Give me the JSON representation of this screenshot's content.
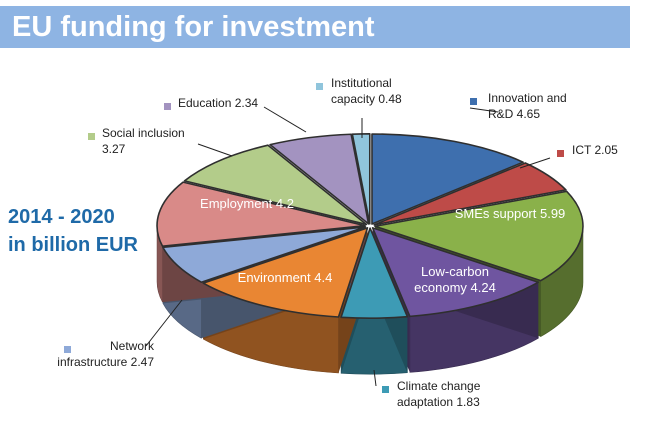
{
  "title": "EU funding for investment",
  "caption": {
    "line1": "2014 - 2020",
    "line2": "in billion EUR"
  },
  "chart_data": {
    "type": "pie",
    "title": "EU funding for investment",
    "unit": "billion EUR",
    "period": "2014 - 2020",
    "legend": "none",
    "categories": [
      "Innovation and R&D",
      "ICT",
      "SMEs support",
      "Low-carbon economy",
      "Climate change adaptation",
      "Environment",
      "Network infrastructure",
      "Employment",
      "Social inclusion",
      "Education",
      "Institutional capacity"
    ],
    "values": [
      4.65,
      2.05,
      5.99,
      4.24,
      1.83,
      4.4,
      2.47,
      4.2,
      3.27,
      2.34,
      0.48
    ],
    "colors": [
      "#3e6fae",
      "#be4b48",
      "#8ab14a",
      "#6f55a0",
      "#3d9bb5",
      "#e98633",
      "#8ea9d8",
      "#d98a88",
      "#b3cc8a",
      "#a393c0",
      "#90c5dc"
    ],
    "labels": [
      [
        "Innovation and",
        "R&D 4.65"
      ],
      [
        "ICT 2.05"
      ],
      [
        "SMEs support 5.99"
      ],
      [
        "Low-carbon",
        "economy 4.24"
      ],
      [
        "Climate change",
        "adaptation 1.83"
      ],
      [
        "Environment 4.4"
      ],
      [
        "Network",
        "infrastructure 2.47"
      ],
      [
        "Employment 4.2"
      ],
      [
        "Social inclusion",
        "3.27"
      ],
      [
        "Education 2.34"
      ],
      [
        "Institutional",
        "capacity 0.48"
      ]
    ]
  }
}
